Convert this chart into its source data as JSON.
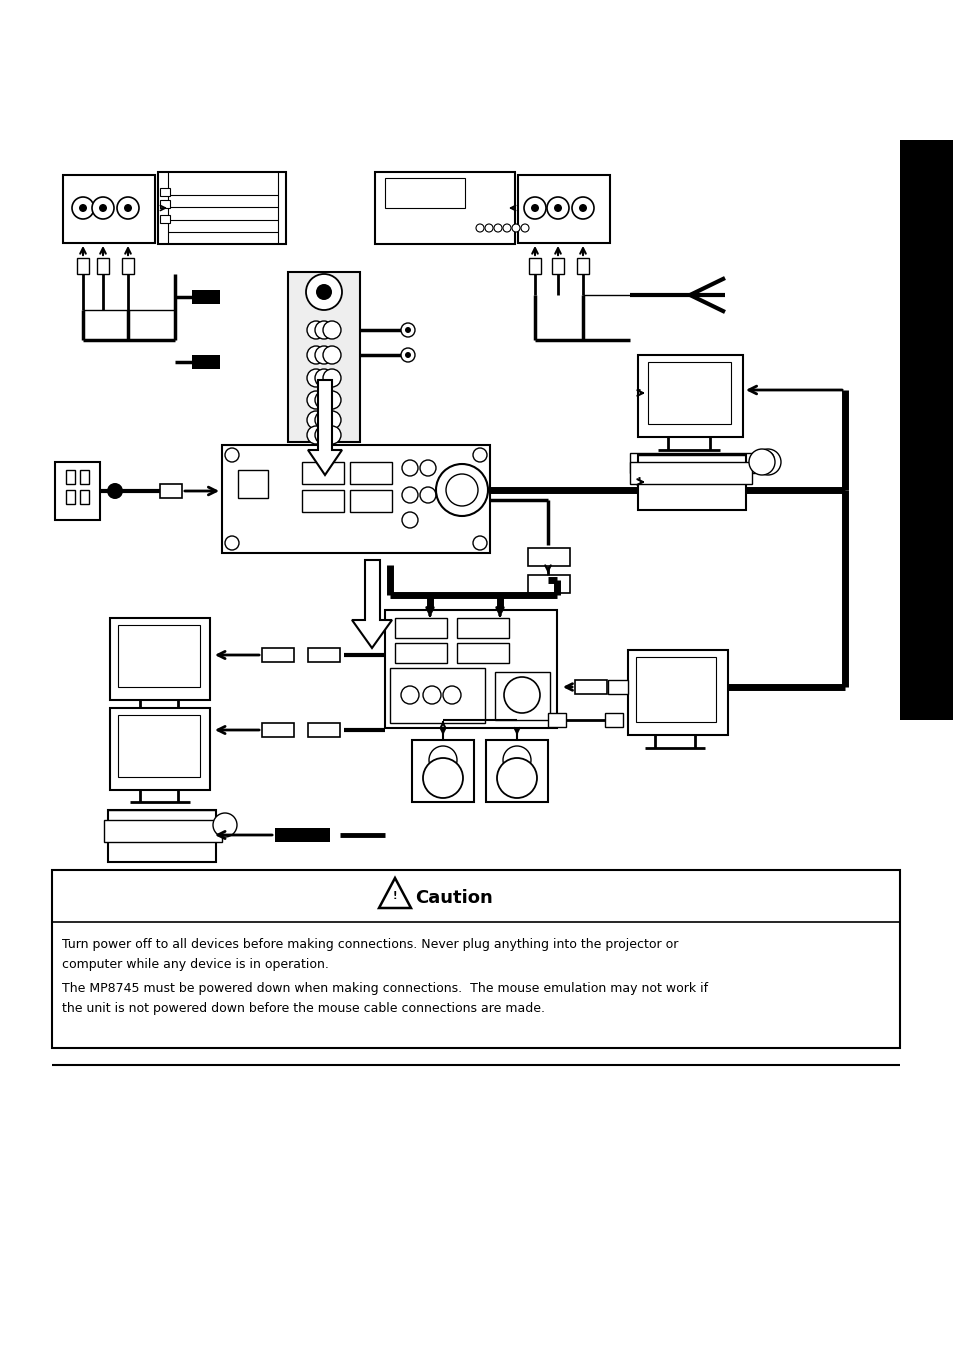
{
  "page_bg": "#ffffff",
  "sidebar_color": "#000000",
  "caution_title": "Caution",
  "caution_line1": "Turn power off to all devices before making connections. Never plug anything into the projector or",
  "caution_line2": "computer while any device is in operation.",
  "caution_line3": "The MP8745 must be powered down when making connections.  The mouse emulation may not work if",
  "caution_line4": "the unit is not powered down before the mouse cable connections are made."
}
